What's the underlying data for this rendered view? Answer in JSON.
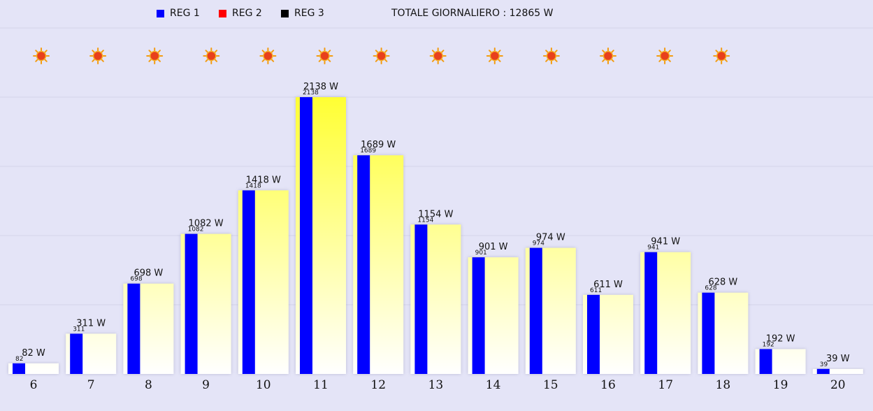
{
  "legend": [
    {
      "label": "REG 1",
      "color": "#0000ff"
    },
    {
      "label": "REG 2",
      "color": "#ff0000"
    },
    {
      "label": "REG 3",
      "color": "#000000"
    }
  ],
  "total": {
    "label": "TOTALE GIORNALIERO :",
    "value": "12865 W"
  },
  "sun_icon": "sun-icon",
  "sun_count": 13,
  "chart_data": {
    "type": "bar",
    "categories": [
      "6",
      "7",
      "8",
      "9",
      "10",
      "11",
      "12",
      "13",
      "14",
      "15",
      "16",
      "17",
      "18",
      "19",
      "20"
    ],
    "total_values": [
      82,
      311,
      698,
      1082,
      1418,
      2138,
      1689,
      1154,
      901,
      974,
      611,
      941,
      628,
      192,
      39
    ],
    "total_labels": [
      "82 W",
      "311 W",
      "698 W",
      "1082 W",
      "1418 W",
      "2138 W",
      "1689 W",
      "1154 W",
      "901 W",
      "974 W",
      "611 W",
      "941 W",
      "628 W",
      "192 W",
      "39 W"
    ],
    "series": [
      {
        "name": "REG 1",
        "color": "#0000ff",
        "values": [
          82,
          311,
          698,
          1082,
          1418,
          2138,
          1689,
          1154,
          901,
          974,
          611,
          941,
          628,
          192,
          39
        ]
      },
      {
        "name": "REG 2",
        "color": "#ff0000",
        "values": [
          0,
          0,
          0,
          0,
          0,
          0,
          0,
          0,
          0,
          0,
          0,
          0,
          0,
          0,
          0
        ]
      },
      {
        "name": "REG 3",
        "color": "#000000",
        "values": [
          0,
          0,
          0,
          0,
          0,
          0,
          0,
          0,
          0,
          0,
          0,
          0,
          0,
          0,
          0
        ]
      }
    ],
    "ylim": [
      0,
      2138
    ],
    "grid": true,
    "legend_position": "top",
    "gradient_colors": {
      "high": "#ffff33",
      "low": "#ffffff"
    }
  }
}
